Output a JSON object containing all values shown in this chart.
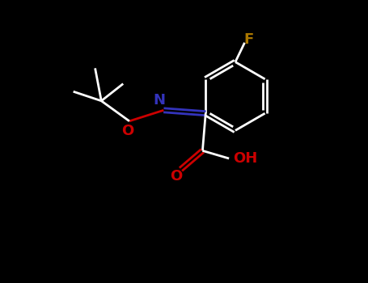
{
  "bg_color": "#000000",
  "bond_color": "#ffffff",
  "N_color": "#3333bb",
  "O_color": "#cc0000",
  "F_color": "#aa7700",
  "lw": 2.0,
  "dbl_off": 0.065,
  "fs": 13,
  "fig_w": 4.55,
  "fig_h": 3.5,
  "dpi": 100,
  "xlim": [
    0,
    9.1
  ],
  "ylim": [
    0,
    7.0
  ]
}
